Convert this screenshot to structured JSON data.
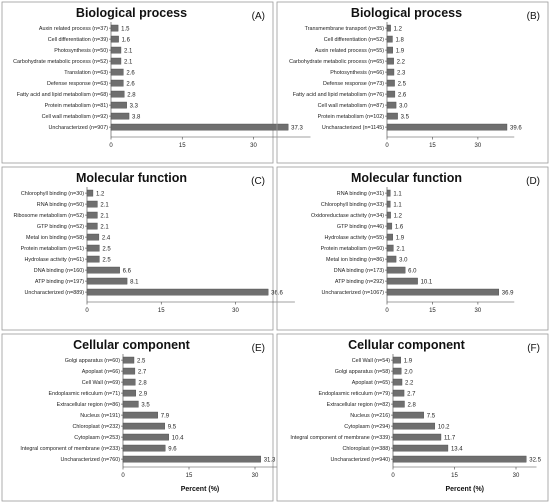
{
  "chart_data": [
    {
      "type": "bar",
      "orientation": "horizontal",
      "title": "Biological process",
      "panel_label": "(A)",
      "categories": [
        "Auxin related process (n=37)",
        "Cell differentiation (n=39)",
        "Photosynthesis (n=50)",
        "Carbohydrate metabolic process (n=52)",
        "Translation (n=63)",
        "Defense response (n=63)",
        "Fatty acid and lipid metabolism (n=68)",
        "Protein metabolism (n=81)",
        "Cell wall metabolism (n=92)",
        "Uncharacterized (n=907)"
      ],
      "values": [
        1.5,
        1.6,
        2.1,
        2.1,
        2.6,
        2.6,
        2.8,
        3.3,
        3.8,
        37.3
      ],
      "value_labels": [
        "1.5",
        "1.6",
        "2.1",
        "2.1",
        "2.6",
        "2.6",
        "2.8",
        "3.3",
        "3.8",
        "37.3"
      ],
      "xticks": [
        "0",
        "15",
        "30"
      ],
      "xlim": [
        0,
        42
      ],
      "xlabel": ""
    },
    {
      "type": "bar",
      "orientation": "horizontal",
      "title": "Biological process",
      "panel_label": "(B)",
      "categories": [
        "Transmembrane transport (n=35)",
        "Cell differentiation (n=52)",
        "Auxin related process (n=55)",
        "Carbohydrate metabolic process (n=65)",
        "Photosynthesis (n=66)",
        "Defense response (n=73)",
        "Fatty acid and lipid metabolism (n=76)",
        "Cell wall metabolism (n=87)",
        "Protein metabolism (n=102)",
        "Uncharacterized (n=1145)"
      ],
      "values": [
        1.2,
        1.8,
        1.9,
        2.2,
        2.3,
        2.5,
        2.6,
        3.0,
        3.5,
        39.6
      ],
      "value_labels": [
        "1.2",
        "1.8",
        "1.9",
        "2.2",
        "2.3",
        "2.5",
        "2.6",
        "3.0",
        "3.5",
        "39.6"
      ],
      "xticks": [
        "0",
        "15",
        "30"
      ],
      "xlim": [
        0,
        42
      ],
      "xlabel": ""
    },
    {
      "type": "bar",
      "orientation": "horizontal",
      "title": "Molecular function",
      "panel_label": "(C)",
      "categories": [
        "Chlorophyll binding (n=30)",
        "RNA binding (n=50)",
        "Ribosome metabolism (n=52)",
        "GTP binding (n=52)",
        "Metal ion binding (n=58)",
        "Protein metabolism (n=61)",
        "Hydrolase activity (n=61)",
        "DNA binding (n=160)",
        "ATP binding (n=197)",
        "Uncharacterized (n=889)"
      ],
      "values": [
        1.2,
        2.1,
        2.1,
        2.1,
        2.4,
        2.5,
        2.5,
        6.6,
        8.1,
        36.6
      ],
      "value_labels": [
        "1.2",
        "2.1",
        "2.1",
        "2.1",
        "2.4",
        "2.5",
        "2.5",
        "6.6",
        "8.1",
        "36.6"
      ],
      "xticks": [
        "0",
        "15",
        "30"
      ],
      "xlim": [
        0,
        42
      ],
      "xlabel": ""
    },
    {
      "type": "bar",
      "orientation": "horizontal",
      "title": "Molecular function",
      "panel_label": "(D)",
      "categories": [
        "RNA binding (n=31)",
        "Chlorophyll binding (n=33)",
        "Oxidoreductase activity (n=34)",
        "GTP binding (n=46)",
        "Hydrolase activity (n=55)",
        "Protein metabolism (n=60)",
        "Metal ion binding (n=86)",
        "DNA binding (n=173)",
        "ATP binding (n=292)",
        "Uncharacterized (n=1067)"
      ],
      "values": [
        1.1,
        1.1,
        1.2,
        1.6,
        1.9,
        2.1,
        3.0,
        6.0,
        10.1,
        36.9
      ],
      "value_labels": [
        "1.1",
        "1.1",
        "1.2",
        "1.6",
        "1.9",
        "2.1",
        "3.0",
        "6.0",
        "10.1",
        "36.9"
      ],
      "xticks": [
        "0",
        "15",
        "30"
      ],
      "xlim": [
        0,
        42
      ],
      "xlabel": ""
    },
    {
      "type": "bar",
      "orientation": "horizontal",
      "title": "Cellular component",
      "panel_label": "(E)",
      "categories": [
        "Golgi apparatus (n=60)",
        "Apoplast (n=66)",
        "Cell Wall (n=69)",
        "Endoplasmic reticulum (n=71)",
        "Extracellular region (n=86)",
        "Nucleus (n=191)",
        "Chloroplast (n=232)",
        "Cytoplasm (n=253)",
        "Integral component of membrane (n=233)",
        "Uncharacterized (n=760)"
      ],
      "values": [
        2.5,
        2.7,
        2.8,
        2.9,
        3.5,
        7.9,
        9.5,
        10.4,
        9.6,
        31.3
      ],
      "value_labels": [
        "2.5",
        "2.7",
        "2.8",
        "2.9",
        "3.5",
        "7.9",
        "9.5",
        "10.4",
        "9.6",
        "31.3"
      ],
      "xticks": [
        "0",
        "15",
        "30"
      ],
      "xlim": [
        0,
        35
      ],
      "xlabel": "Percent (%)"
    },
    {
      "type": "bar",
      "orientation": "horizontal",
      "title": "Cellular component",
      "panel_label": "(F)",
      "categories": [
        "Cell Wall (n=54)",
        "Golgi apparatus (n=58)",
        "Apoplast (n=65)",
        "Endoplasmic reticulum (n=79)",
        "Extracellular region (n=82)",
        "Nucleus (n=216)",
        "Cytoplasm (n=294)",
        "Integral component of membrane (n=339)",
        "Chloroplast (n=388)",
        "Uncharacterized (n=940)"
      ],
      "values": [
        1.9,
        2.0,
        2.2,
        2.7,
        2.8,
        7.5,
        10.2,
        11.7,
        13.4,
        32.5
      ],
      "value_labels": [
        "1.9",
        "2.0",
        "2.2",
        "2.7",
        "2.8",
        "7.5",
        "10.2",
        "11.7",
        "13.4",
        "32.5"
      ],
      "xticks": [
        "0",
        "15",
        "30"
      ],
      "xlim": [
        0,
        35
      ],
      "xlabel": "Percent (%)"
    }
  ],
  "colors": {
    "bar": "#6f6f6f",
    "frame": "#9a9a9a",
    "background": "#ffffff"
  }
}
